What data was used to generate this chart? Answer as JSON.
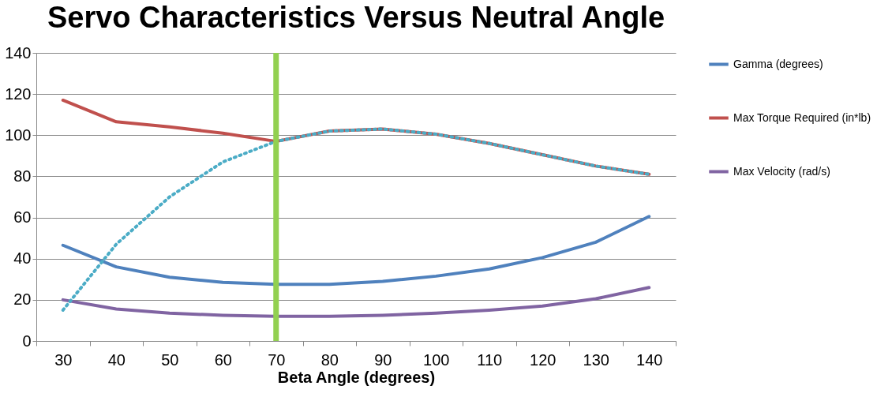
{
  "chart_data": {
    "type": "line",
    "title": "Servo Characteristics Versus Neutral Angle",
    "xlabel": "Beta Angle (degrees)",
    "categories": [
      "30",
      "40",
      "50",
      "60",
      "70",
      "80",
      "90",
      "100",
      "110",
      "120",
      "130",
      "140"
    ],
    "series": [
      {
        "name": "Gamma (degrees)",
        "color": "#4f81bd",
        "values": [
          46.5,
          36,
          31,
          28.5,
          27.5,
          27.5,
          29,
          31.5,
          35,
          40.5,
          48,
          60.5
        ]
      },
      {
        "name": "Max Torque Required (in*lb)",
        "color": "#c0504d",
        "values": [
          117,
          106.5,
          104,
          101,
          97,
          102,
          103,
          100.5,
          96,
          90.5,
          85,
          81
        ]
      },
      {
        "name": "Max Velocity (rad/s)",
        "color": "#8064a2",
        "values": [
          20,
          15.5,
          13.5,
          12.5,
          12,
          12,
          12.5,
          13.5,
          15,
          17,
          20.5,
          26
        ]
      },
      {
        "color": "#4bacc6",
        "line_style": "dotted",
        "values": [
          15,
          47,
          70,
          87,
          97,
          102,
          103,
          100.5,
          96,
          90.5,
          85,
          81
        ]
      }
    ],
    "ylim": [
      0,
      140
    ],
    "yticks": [
      0,
      20,
      40,
      60,
      80,
      100,
      120,
      140
    ],
    "grid": "y",
    "legend": "right",
    "marker": "none",
    "ref_lines": [
      {
        "axis": "x",
        "value": "70",
        "color": "#92d050"
      }
    ]
  }
}
